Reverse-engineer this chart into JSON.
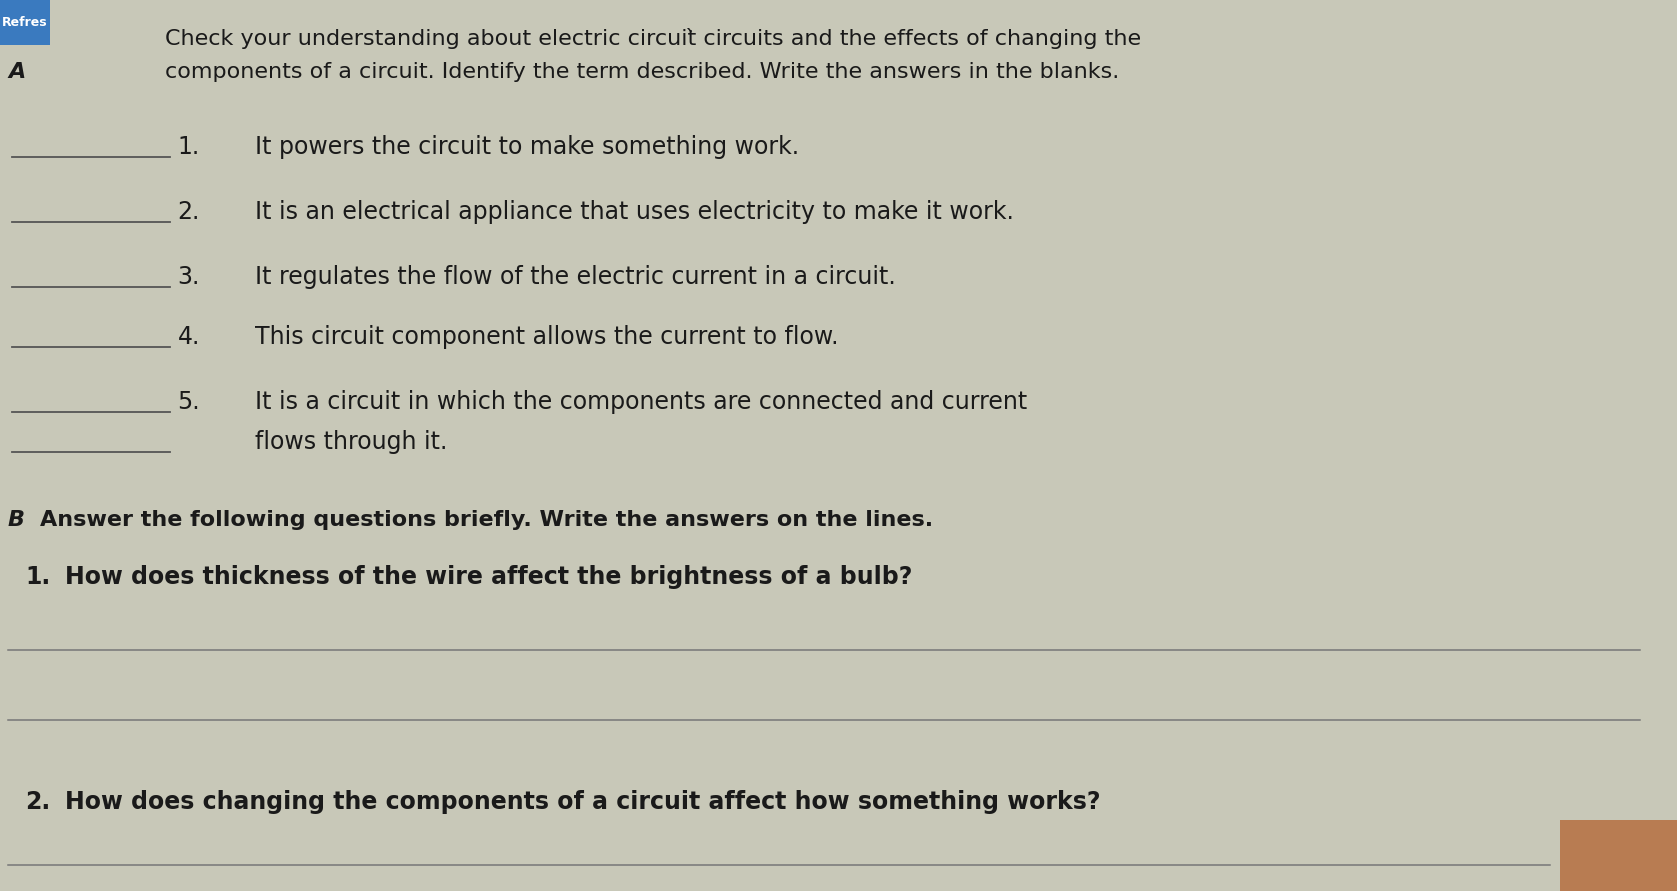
{
  "paper_color": "#c8c8b8",
  "tab_color": "#3a7abf",
  "tab_text": "Refres",
  "section_a_marker": "A",
  "section_a_intro_line1": "Check your understanding about electric circuit̀ circuits and the effects of changing the",
  "section_a_intro_line2": "components of a circuit. Identify the term described. Write the answers in the blanks.",
  "items": [
    "It powers the circuit to make something work.",
    "It is an electrical appliance that uses electricity to make it work.",
    "It regulates the flow of the electric current in a circuit.",
    "This circuit component allows the current to flow.",
    "It is a circuit in which the components are connected and current",
    "flows through it."
  ],
  "item_split": 4,
  "section_b_marker": "B",
  "section_b_intro": "Answer the following questions briefly. Write the answers on the lines.",
  "q1_num": "1.",
  "q1_text": "How does thickness of the wire affect the brightness of a bulb?",
  "q2_num": "2.",
  "q2_text": "How does changing the components of a circuit affect how something works?",
  "text_color": "#1a1a1a",
  "line_color": "#777777",
  "blank_color": "#555555"
}
